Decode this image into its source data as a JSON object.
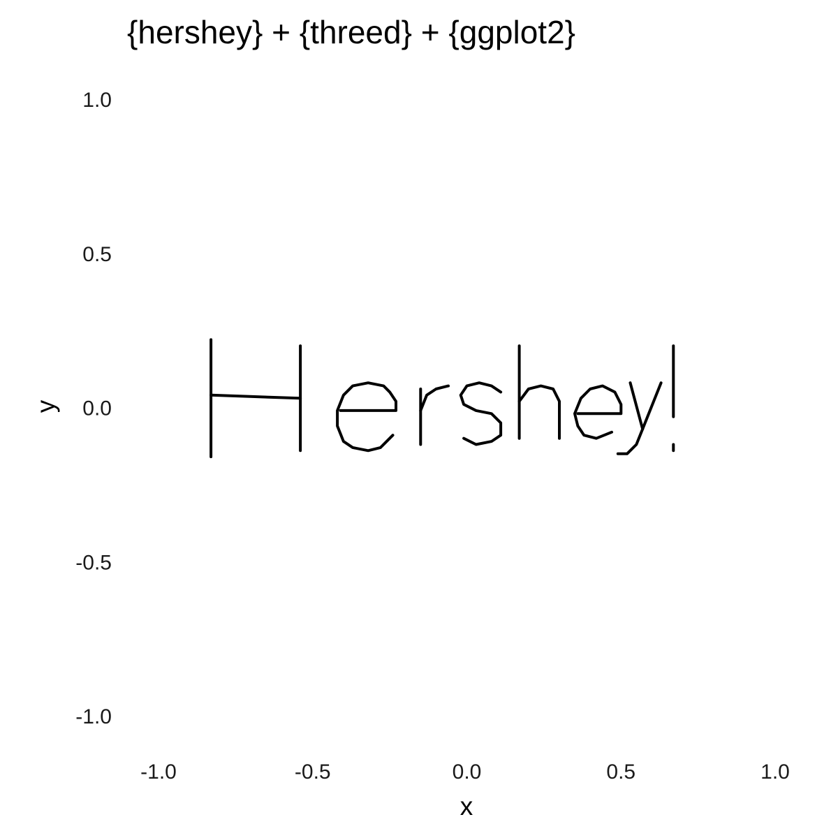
{
  "chart_data": {
    "type": "line",
    "title": "{hershey} + {threed} + {ggplot2}",
    "xlabel": "x",
    "ylabel": "y",
    "xlim": [
      -1.1,
      1.1
    ],
    "ylim": [
      -1.1,
      1.1
    ],
    "x_ticks": [
      "-1.0",
      "-0.5",
      "0.0",
      "0.5",
      "1.0"
    ],
    "y_ticks": [
      "1.0",
      "0.5",
      "0.0",
      "-0.5",
      "-1.0"
    ],
    "grid": false,
    "text_rendered": "Hershey!",
    "series": [
      {
        "glyph": "H",
        "strokes": [
          [
            [
              -0.83,
              0.22
            ],
            [
              -0.83,
              -0.16
            ]
          ],
          [
            [
              -0.54,
              0.2
            ],
            [
              -0.54,
              -0.14
            ]
          ],
          [
            [
              -0.83,
              0.04
            ],
            [
              -0.54,
              0.03
            ]
          ]
        ]
      },
      {
        "glyph": "e",
        "strokes": [
          [
            [
              -0.41,
              -0.01
            ],
            [
              -0.23,
              -0.01
            ],
            [
              -0.23,
              0.02
            ],
            [
              -0.25,
              0.05
            ],
            [
              -0.27,
              0.07
            ],
            [
              -0.32,
              0.08
            ],
            [
              -0.37,
              0.07
            ],
            [
              -0.4,
              0.04
            ],
            [
              -0.42,
              -0.01
            ],
            [
              -0.42,
              -0.06
            ],
            [
              -0.4,
              -0.11
            ],
            [
              -0.37,
              -0.13
            ],
            [
              -0.32,
              -0.14
            ],
            [
              -0.28,
              -0.13
            ],
            [
              -0.24,
              -0.09
            ]
          ]
        ]
      },
      {
        "glyph": "r",
        "strokes": [
          [
            [
              -0.15,
              0.06
            ],
            [
              -0.15,
              -0.12
            ]
          ],
          [
            [
              -0.15,
              -0.01
            ],
            [
              -0.13,
              0.04
            ],
            [
              -0.1,
              0.06
            ],
            [
              -0.06,
              0.07
            ]
          ]
        ]
      },
      {
        "glyph": "s",
        "strokes": [
          [
            [
              0.11,
              0.05
            ],
            [
              0.08,
              0.07
            ],
            [
              0.04,
              0.08
            ],
            [
              0.0,
              0.07
            ],
            [
              -0.02,
              0.04
            ],
            [
              -0.01,
              0.01
            ],
            [
              0.03,
              -0.01
            ],
            [
              0.08,
              -0.02
            ],
            [
              0.11,
              -0.05
            ],
            [
              0.11,
              -0.09
            ],
            [
              0.08,
              -0.11
            ],
            [
              0.03,
              -0.12
            ],
            [
              -0.01,
              -0.1
            ]
          ]
        ]
      },
      {
        "glyph": "h",
        "strokes": [
          [
            [
              0.17,
              0.2
            ],
            [
              0.17,
              -0.1
            ]
          ],
          [
            [
              0.17,
              0.02
            ],
            [
              0.2,
              0.06
            ],
            [
              0.24,
              0.07
            ],
            [
              0.28,
              0.06
            ],
            [
              0.3,
              0.02
            ],
            [
              0.3,
              -0.1
            ]
          ]
        ]
      },
      {
        "glyph": "e",
        "strokes": [
          [
            [
              0.36,
              -0.02
            ],
            [
              0.5,
              -0.02
            ],
            [
              0.5,
              0.01
            ],
            [
              0.48,
              0.05
            ],
            [
              0.44,
              0.07
            ],
            [
              0.4,
              0.06
            ],
            [
              0.37,
              0.03
            ],
            [
              0.35,
              -0.02
            ],
            [
              0.36,
              -0.06
            ],
            [
              0.38,
              -0.09
            ],
            [
              0.42,
              -0.1
            ],
            [
              0.47,
              -0.08
            ]
          ]
        ]
      },
      {
        "glyph": "y",
        "strokes": [
          [
            [
              0.53,
              0.08
            ],
            [
              0.57,
              -0.07
            ]
          ],
          [
            [
              0.63,
              0.08
            ],
            [
              0.57,
              -0.07
            ],
            [
              0.55,
              -0.12
            ],
            [
              0.52,
              -0.15
            ],
            [
              0.49,
              -0.15
            ]
          ]
        ]
      },
      {
        "glyph": "!",
        "strokes": [
          [
            [
              0.67,
              0.2
            ],
            [
              0.67,
              -0.03
            ]
          ],
          [
            [
              0.67,
              -0.12
            ],
            [
              0.67,
              -0.14
            ]
          ]
        ]
      }
    ]
  }
}
